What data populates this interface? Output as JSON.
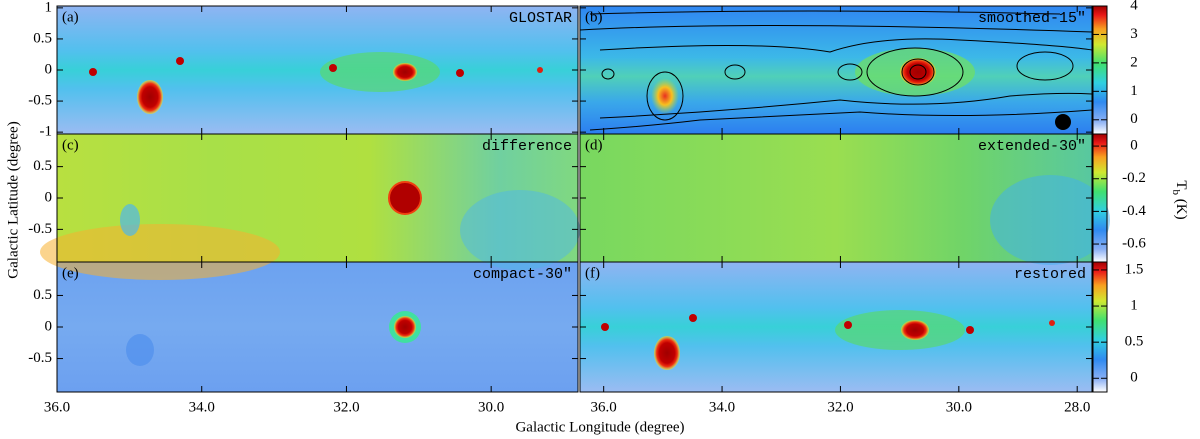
{
  "chart_data": {
    "type": "heatmap",
    "x_label": "Galactic Longitude (degree)",
    "y_label": "Galactic Latitude (degree)",
    "colorbar_label": {
      "main": "T",
      "sub": "b",
      "unit": " (K)"
    },
    "panels": [
      {
        "tag": "(a)",
        "name": "GLOSTAR"
      },
      {
        "tag": "(b)",
        "name": "smoothed-15\""
      },
      {
        "tag": "(c)",
        "name": "difference"
      },
      {
        "tag": "(d)",
        "name": "extended-30\""
      },
      {
        "tag": "(e)",
        "name": "compact-30\""
      },
      {
        "tag": "(f)",
        "name": "restored"
      }
    ],
    "x_axes": [
      {
        "xlim": [
          36,
          28.8
        ],
        "xticks": [
          {
            "value": 36,
            "label": "36.0"
          },
          {
            "value": 34,
            "label": "34.0"
          },
          {
            "value": 32,
            "label": "32.0"
          },
          {
            "value": 30,
            "label": "30.0"
          }
        ]
      },
      {
        "xlim": [
          36.4,
          27.75
        ],
        "xticks": [
          {
            "value": 36,
            "label": "36.0"
          },
          {
            "value": 34,
            "label": "34.0"
          },
          {
            "value": 32,
            "label": "32.0"
          },
          {
            "value": 30,
            "label": "30.0"
          },
          {
            "value": 28,
            "label": "28.0"
          }
        ]
      }
    ],
    "y_axes": [
      {
        "ylim": [
          -1.03,
          1.03
        ],
        "yticks": [
          1,
          0.5,
          0,
          -0.5,
          -1
        ]
      },
      {
        "ylim": [
          -1.02,
          1.02
        ],
        "yticks": [
          0.5,
          0,
          -0.5
        ]
      },
      {
        "ylim": [
          -1.03,
          1.03
        ],
        "yticks": [
          0.5,
          0,
          -0.5
        ]
      }
    ],
    "colorbars": [
      {
        "lim": [
          -0.5,
          4.0
        ],
        "ticks": [
          4,
          3,
          2,
          1,
          0
        ]
      },
      {
        "lim": [
          -0.71,
          0.074
        ],
        "ticks": [
          0,
          -0.2,
          -0.4,
          -0.6
        ]
      },
      {
        "lim": [
          -0.19,
          1.61
        ],
        "ticks": [
          1.5,
          1,
          0.5,
          0
        ]
      }
    ]
  }
}
